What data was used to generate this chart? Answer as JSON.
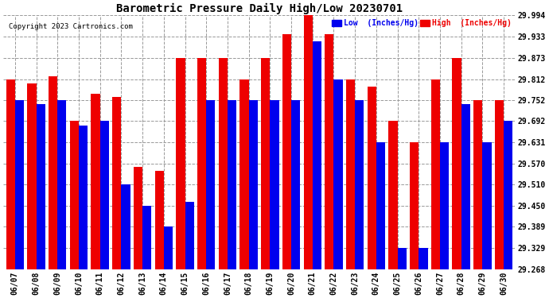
{
  "title": "Barometric Pressure Daily High/Low 20230701",
  "copyright": "Copyright 2023 Cartronics.com",
  "legend_low": "Low  (Inches/Hg)",
  "legend_high": "High  (Inches/Hg)",
  "low_color": "#0000ee",
  "high_color": "#ee0000",
  "background_color": "#ffffff",
  "grid_color": "#999999",
  "ylim_min": 29.268,
  "ylim_max": 29.994,
  "yticks": [
    29.268,
    29.329,
    29.389,
    29.45,
    29.51,
    29.57,
    29.631,
    29.692,
    29.752,
    29.812,
    29.873,
    29.933,
    29.994
  ],
  "dates": [
    "06/07",
    "06/08",
    "06/09",
    "06/10",
    "06/11",
    "06/12",
    "06/13",
    "06/14",
    "06/15",
    "06/16",
    "06/17",
    "06/18",
    "06/19",
    "06/20",
    "06/21",
    "06/22",
    "06/23",
    "06/24",
    "06/25",
    "06/26",
    "06/27",
    "06/28",
    "06/29",
    "06/30"
  ],
  "high_values": [
    29.812,
    29.8,
    29.82,
    29.692,
    29.77,
    29.76,
    29.56,
    29.55,
    29.873,
    29.873,
    29.873,
    29.812,
    29.873,
    29.94,
    29.994,
    29.94,
    29.812,
    29.79,
    29.692,
    29.631,
    29.812,
    29.873,
    29.752,
    29.752
  ],
  "low_values": [
    29.752,
    29.74,
    29.752,
    29.68,
    29.692,
    29.51,
    29.45,
    29.389,
    29.46,
    29.752,
    29.752,
    29.752,
    29.752,
    29.752,
    29.92,
    29.812,
    29.752,
    29.631,
    29.329,
    29.329,
    29.631,
    29.74,
    29.631,
    29.692
  ]
}
